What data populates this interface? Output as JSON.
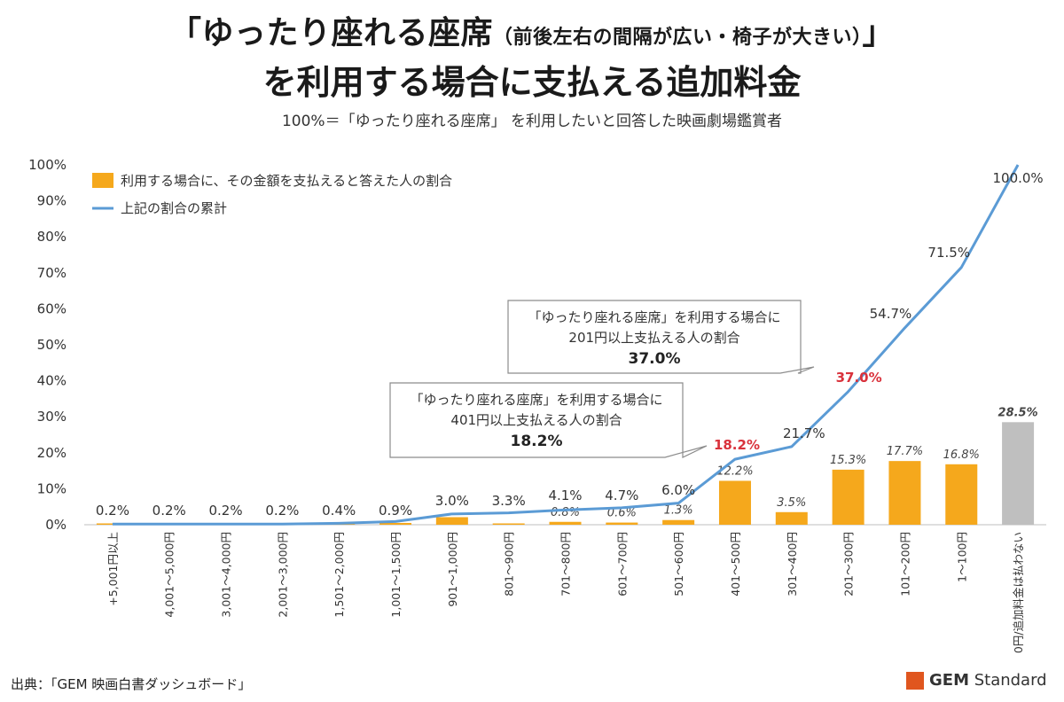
{
  "title": {
    "line1_main": "「ゆったり座れる座席",
    "line1_paren": "（前後左右の間隔が広い・椅子が大きい）",
    "line1_end": "」",
    "line2": "を利用する場合に支払える追加料金",
    "subtitle": "100%＝「ゆったり座れる座席」 を利用したいと回答した映画劇場鑑賞者"
  },
  "source": "出典：「GEM 映画白書ダッシュボード」",
  "logo": {
    "brand": "GEM",
    "suffix": " Standard",
    "color": "#e0561f"
  },
  "colors": {
    "bar": "#f5a81c",
    "bar_last": "#bfbfbf",
    "line": "#5b9bd5",
    "highlight": "#d9323c"
  },
  "chart_data": {
    "type": "bar+line",
    "ylim": [
      0,
      100
    ],
    "yticks": [
      "0%",
      "10%",
      "20%",
      "30%",
      "40%",
      "50%",
      "60%",
      "70%",
      "80%",
      "90%",
      "100%"
    ],
    "categories": [
      "+5,001円以上",
      "4,001～5,000円",
      "3,001～4,000円",
      "2,001～3,000円",
      "1,501～2,000円",
      "1,001～1,500円",
      "901～1,000円",
      "801～900円",
      "701～800円",
      "601～700円",
      "501～600円",
      "401～500円",
      "301～400円",
      "201～300円",
      "101～200円",
      "1～100円",
      "0円/追加料金は払わない"
    ],
    "series": [
      {
        "name": "利用する場合に、その金額を支払えると答えた人の割合",
        "kind": "bar",
        "values": [
          0.2,
          0.0,
          0.0,
          0.0,
          0.2,
          0.5,
          2.1,
          0.3,
          0.8,
          0.6,
          1.3,
          12.2,
          3.5,
          15.3,
          17.7,
          16.8,
          28.5
        ],
        "labels": [
          "",
          "",
          "",
          "",
          "",
          "",
          "",
          "",
          "0.8%",
          "0.6%",
          "1.3%",
          "12.2%",
          "3.5%",
          "15.3%",
          "17.7%",
          "16.8%",
          "28.5%"
        ]
      },
      {
        "name": "上記の割合の累計",
        "kind": "line",
        "values": [
          0.2,
          0.2,
          0.2,
          0.2,
          0.4,
          0.9,
          3.0,
          3.3,
          4.1,
          4.7,
          6.0,
          18.2,
          21.7,
          37.0,
          54.7,
          71.5,
          100.0
        ],
        "labels": [
          "0.2%",
          "0.2%",
          "0.2%",
          "0.2%",
          "0.4%",
          "0.9%",
          "3.0%",
          "3.3%",
          "4.1%",
          "4.7%",
          "6.0%",
          "18.2%",
          "21.7%",
          "37.0%",
          "54.7%",
          "71.5%",
          "100.0%"
        ]
      }
    ],
    "highlight_indices": [
      11,
      13
    ],
    "callouts": [
      {
        "line1": "「ゆったり座れる座席」を利用する場合に",
        "line2": "201円以上支払える人の割合",
        "value": "37.0%"
      },
      {
        "line1": "「ゆったり座れる座席」を利用する場合に",
        "line2": "401円以上支払える人の割合",
        "value": "18.2%"
      }
    ]
  }
}
